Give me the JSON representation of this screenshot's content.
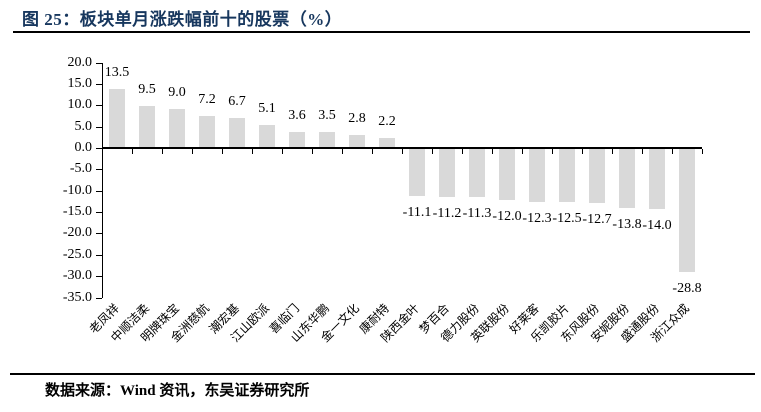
{
  "figure": {
    "title": "图 25：板块单月涨跌幅前十的股票（%）",
    "source": "数据来源：Wind 资讯，东吴证券研究所"
  },
  "colors": {
    "title_text": "#17375E",
    "bar_fill": "#D9D9D9",
    "axis_line": "#000000",
    "label_text": "#000000",
    "divider_line": "#000000",
    "background": "#FFFFFF"
  },
  "chart_data": {
    "type": "bar",
    "title": "图 25：板块单月涨跌幅前十的股票（%）",
    "categories": [
      "老凤祥",
      "中顺洁柔",
      "明牌珠宝",
      "金洲慈航",
      "潮宏基",
      "江山欧派",
      "喜临门",
      "山东华鹏",
      "金一文化",
      "康耐特",
      "陕西金叶",
      "梦百合",
      "德力股份",
      "英联股份",
      "好莱客",
      "乐凯胶片",
      "东风股份",
      "安妮股份",
      "盛通股份",
      "浙江众成"
    ],
    "values": [
      13.5,
      9.5,
      9.0,
      7.2,
      6.7,
      5.1,
      3.6,
      3.5,
      2.8,
      2.2,
      -11.1,
      -11.2,
      -11.3,
      -12.0,
      -12.3,
      -12.5,
      -12.7,
      -13.8,
      -14.0,
      -28.8
    ],
    "data_labels": [
      "13.5",
      "9.5",
      "9.0",
      "7.2",
      "6.7",
      "5.1",
      "3.6",
      "3.5",
      "2.8",
      "2.2",
      "-11.1",
      "-11.2",
      "-11.3",
      "-12.0",
      "-12.3",
      "-12.5",
      "-12.7",
      "-13.8",
      "-14.0",
      "-28.8"
    ],
    "xlabel": "",
    "ylabel": "",
    "ylim": [
      -35,
      20
    ],
    "ytick_step": 5,
    "ytick_labels": [
      "20.0",
      "15.0",
      "10.0",
      "5.0",
      "0.0",
      "-5.0",
      "-10.0",
      "-15.0",
      "-20.0",
      "-25.0",
      "-30.0",
      "-35.0"
    ],
    "grid": false,
    "legend": null,
    "bar_orientation": "vertical",
    "value_label_position": "outside-end"
  }
}
